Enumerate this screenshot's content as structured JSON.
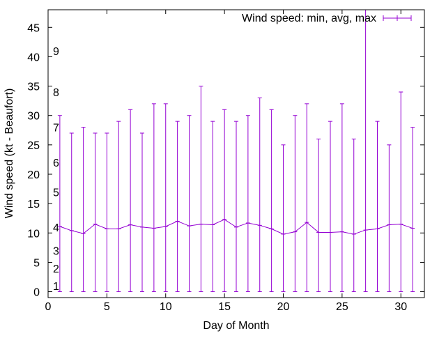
{
  "chart_data": {
    "type": "line",
    "title": "",
    "xlabel": "Day of Month",
    "ylabel": "Wind speed (kt - Beaufort)",
    "xlim": [
      0,
      32
    ],
    "ylim": [
      -1,
      48
    ],
    "xticks": [
      0,
      5,
      10,
      15,
      20,
      25,
      30
    ],
    "yticks": [
      0,
      5,
      10,
      15,
      20,
      25,
      30,
      35,
      40,
      45
    ],
    "grid": false,
    "legend": {
      "position": "top-right",
      "entries": [
        "Wind speed: min, avg, max"
      ]
    },
    "color": "#9400d3",
    "series": [
      {
        "name": "Wind speed: min, avg, max",
        "x": [
          1,
          2,
          3,
          4,
          5,
          6,
          7,
          8,
          9,
          10,
          11,
          12,
          13,
          14,
          15,
          16,
          17,
          18,
          19,
          20,
          21,
          22,
          23,
          24,
          25,
          26,
          27,
          28,
          29,
          30,
          31
        ],
        "min": [
          0,
          0,
          0,
          0,
          0,
          0,
          0,
          0,
          0,
          0,
          0,
          0,
          0,
          0,
          0,
          0,
          0,
          0,
          0,
          0,
          0,
          0,
          0,
          0,
          0,
          0,
          0,
          0,
          0,
          0,
          0
        ],
        "avg": [
          11.1,
          10.4,
          9.9,
          11.5,
          10.7,
          10.7,
          11.4,
          11.0,
          10.8,
          11.1,
          12.0,
          11.2,
          11.5,
          11.4,
          12.3,
          11.0,
          11.7,
          11.3,
          10.7,
          9.8,
          10.2,
          11.8,
          10.1,
          10.1,
          10.2,
          9.8,
          10.5,
          10.7,
          11.4,
          11.5,
          10.8
        ],
        "max": [
          30,
          27,
          28,
          27,
          27,
          29,
          31,
          27,
          32,
          32,
          29,
          30,
          35,
          29,
          31,
          29,
          30,
          33,
          31,
          25,
          30,
          32,
          26,
          29,
          32,
          26,
          48,
          29,
          25,
          34,
          28
        ]
      }
    ],
    "annotations": [
      {
        "text": "1",
        "y": 1
      },
      {
        "text": "2",
        "y": 4
      },
      {
        "text": "3",
        "y": 7
      },
      {
        "text": "4",
        "y": 11
      },
      {
        "text": "5",
        "y": 17
      },
      {
        "text": "6",
        "y": 22
      },
      {
        "text": "7",
        "y": 28
      },
      {
        "text": "8",
        "y": 34
      },
      {
        "text": "9",
        "y": 41
      }
    ]
  }
}
